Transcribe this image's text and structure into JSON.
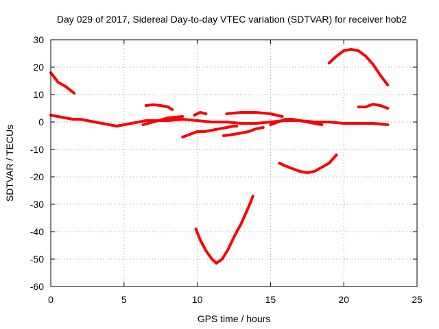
{
  "chart_data": {
    "type": "line",
    "title": "Day 029 of 2017, Sidereal Day-to-day VTEC variation (SDTVAR) for receiver hob2",
    "xlabel": "GPS time / hours",
    "ylabel": "SDTVAR / TECUs",
    "xlim": [
      0,
      25
    ],
    "ylim": [
      -60,
      30
    ],
    "xticks": [
      "0",
      "5",
      "10",
      "15",
      "20",
      "25"
    ],
    "yticks": [
      "30",
      "20",
      "10",
      "0",
      "-10",
      "-20",
      "-30",
      "-40",
      "-50",
      "-60"
    ],
    "grid": true,
    "color": "#ff0000",
    "series": [
      {
        "x": [
          0.0,
          0.5,
          1.0,
          1.6
        ],
        "y": [
          18,
          14.5,
          13,
          10.5
        ]
      },
      {
        "x": [
          0.0,
          0.5,
          1.0,
          1.5,
          2.0,
          2.5,
          3.0,
          3.5,
          4.0,
          4.5,
          5.0,
          5.5,
          6.0,
          6.5,
          7.0,
          8.0,
          9.0,
          10.0,
          11.0,
          12.0,
          13.0,
          14.0,
          15.0,
          16.0,
          17.0,
          18.0,
          19.0,
          20.0,
          21.0,
          22.0,
          23.0
        ],
        "y": [
          2.5,
          2,
          1.5,
          1,
          1,
          0.5,
          0,
          -0.5,
          -1,
          -1.5,
          -1,
          -0.5,
          0,
          0.5,
          0.5,
          0.5,
          1,
          0.5,
          0,
          0,
          -0.5,
          -0.5,
          0,
          0.5,
          0.5,
          0,
          0,
          -0.5,
          -0.5,
          -0.5,
          -1
        ]
      },
      {
        "x": [
          6.5,
          7.0,
          7.5,
          8.0,
          8.3
        ],
        "y": [
          6,
          6.3,
          6,
          5.5,
          4.5
        ]
      },
      {
        "x": [
          6.3,
          7.0,
          8.0,
          9.0
        ],
        "y": [
          -1,
          0,
          1.5,
          2
        ]
      },
      {
        "x": [
          9.0,
          9.5,
          10.0,
          10.5,
          11.0,
          11.5,
          12.0,
          12.5,
          12.7
        ],
        "y": [
          -5.5,
          -4.5,
          -3.5,
          -3.5,
          -3,
          -2.5,
          -2,
          -1.5,
          -1.5
        ]
      },
      {
        "x": [
          9.8,
          10.2,
          10.6
        ],
        "y": [
          2.5,
          3.5,
          3
        ]
      },
      {
        "x": [
          11.8,
          12.5,
          13.0,
          13.5,
          14.0,
          14.5
        ],
        "y": [
          -5,
          -4.5,
          -4,
          -3.5,
          -2.5,
          -2
        ]
      },
      {
        "x": [
          12.0,
          13.0,
          14.0,
          15.0,
          15.8
        ],
        "y": [
          3,
          3.5,
          3.5,
          3,
          2
        ]
      },
      {
        "x": [
          15.0,
          15.5,
          16.0,
          16.5,
          17.0,
          17.5,
          18.0,
          18.5
        ],
        "y": [
          -1,
          0,
          1,
          1,
          0.5,
          0,
          -0.5,
          -1
        ]
      },
      {
        "x": [
          9.9,
          10.2,
          10.6,
          11.0,
          11.3,
          11.7,
          12.1,
          12.5,
          13.0,
          13.5,
          13.8
        ],
        "y": [
          -39,
          -43,
          -47,
          -50,
          -51.5,
          -50,
          -46.5,
          -42,
          -37,
          -31,
          -27
        ]
      },
      {
        "x": [
          15.6,
          16.0,
          16.5,
          17.0,
          17.5,
          18.0,
          18.5,
          19.0,
          19.5
        ],
        "y": [
          -15,
          -16,
          -17,
          -18,
          -18.5,
          -18,
          -16.5,
          -15,
          -12
        ]
      },
      {
        "x": [
          19.0,
          19.5,
          20.0,
          20.5,
          21.0,
          21.5,
          22.0,
          22.5,
          23.0
        ],
        "y": [
          21.5,
          24,
          26,
          26.5,
          26,
          24,
          21,
          17,
          13.5
        ]
      },
      {
        "x": [
          21.0,
          21.5,
          22.0,
          22.5,
          23.0
        ],
        "y": [
          5.5,
          5.5,
          6.5,
          6,
          5
        ]
      }
    ]
  }
}
